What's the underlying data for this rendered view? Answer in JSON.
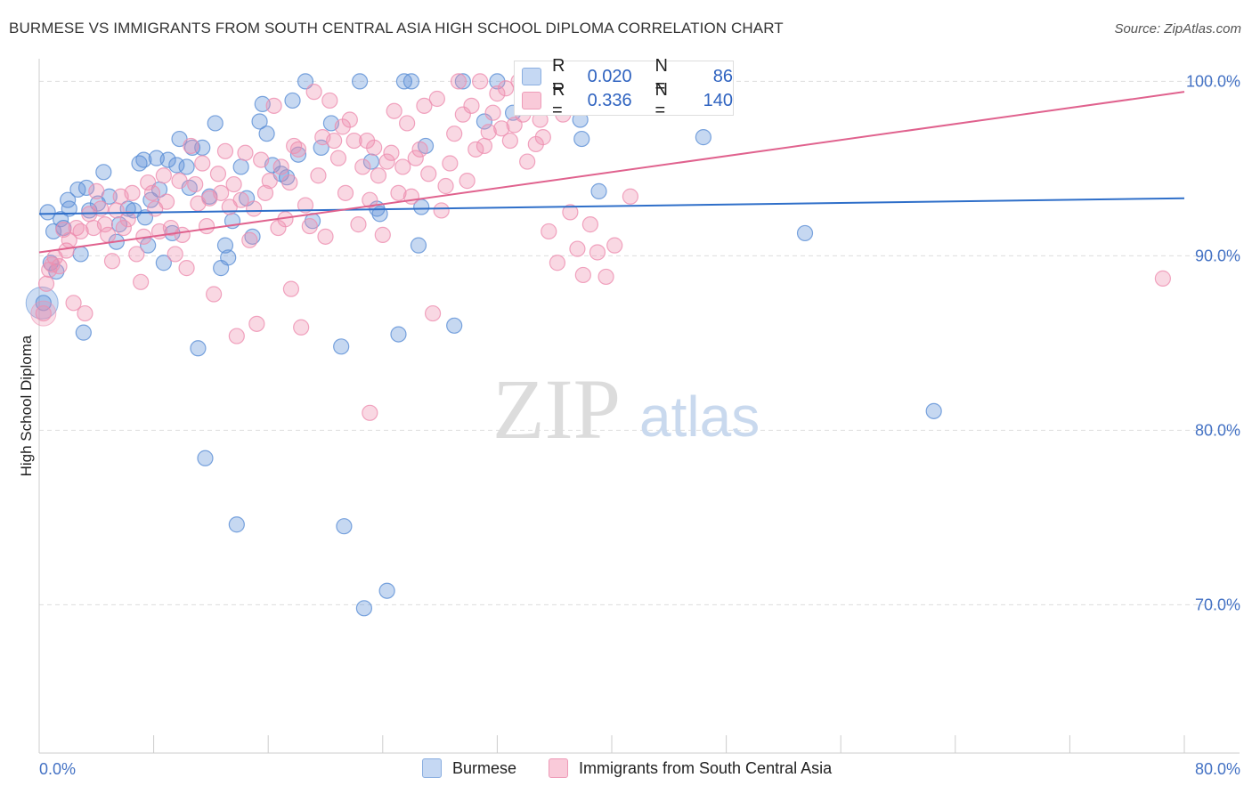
{
  "header": {
    "title": "BURMESE VS IMMIGRANTS FROM SOUTH CENTRAL ASIA HIGH SCHOOL DIPLOMA CORRELATION CHART",
    "source": "Source: ZipAtlas.com"
  },
  "watermark": {
    "zip": "ZIP",
    "atlas": "atlas"
  },
  "legend": {
    "rows": [
      {
        "r_label": "R =",
        "r_value": "0.020",
        "n_label": "N =",
        "n_value": "86",
        "color": "#a9c5ee"
      },
      {
        "r_label": "R =",
        "r_value": "0.336",
        "n_label": "N =",
        "n_value": "140",
        "color": "#f6b6cc"
      }
    ]
  },
  "bottom_legend": [
    {
      "label": "Burmese",
      "color": "#a9c5ee"
    },
    {
      "label": "Immigrants from South Central Asia",
      "color": "#f6b6cc"
    }
  ],
  "chart_data": {
    "type": "scatter",
    "title": "BURMESE VS IMMIGRANTS FROM SOUTH CENTRAL ASIA HIGH SCHOOL DIPLOMA CORRELATION CHART",
    "xlabel": "",
    "ylabel": "High School Diploma",
    "xlim": [
      0,
      80
    ],
    "ylim": [
      61.5,
      101.5
    ],
    "x_tick_labels": [
      "0.0%",
      "80.0%"
    ],
    "y_ticks": [
      70,
      80,
      90,
      100
    ],
    "y_tick_labels": [
      "70.0%",
      "80.0%",
      "90.0%",
      "100.0%"
    ],
    "grid": "horizontal dashed",
    "legend_position": "top-center",
    "colors": {
      "burmese": "#5b8fd6",
      "burmese_line": "#2f6fc9",
      "sca": "#ee8fb0",
      "sca_line": "#e0628e"
    },
    "series": [
      {
        "name": "Burmese",
        "trend": {
          "x": [
            0,
            80
          ],
          "y": [
            92.4,
            93.3
          ]
        },
        "points": [
          [
            0.3,
            87.3
          ],
          [
            0.8,
            89.6
          ],
          [
            1.0,
            91.4
          ],
          [
            1.2,
            89.1
          ],
          [
            1.5,
            92.1
          ],
          [
            1.7,
            91.6
          ],
          [
            2.0,
            93.2
          ],
          [
            2.1,
            92.7
          ],
          [
            2.7,
            93.8
          ],
          [
            2.9,
            90.1
          ],
          [
            3.1,
            85.6
          ],
          [
            3.3,
            93.9
          ],
          [
            3.5,
            92.6
          ],
          [
            4.1,
            93.0
          ],
          [
            4.5,
            94.8
          ],
          [
            4.9,
            93.4
          ],
          [
            5.4,
            90.8
          ],
          [
            5.6,
            91.8
          ],
          [
            6.2,
            92.7
          ],
          [
            6.6,
            92.6
          ],
          [
            7.0,
            95.3
          ],
          [
            7.3,
            95.5
          ],
          [
            7.4,
            92.2
          ],
          [
            7.6,
            90.6
          ],
          [
            7.8,
            93.2
          ],
          [
            8.2,
            95.6
          ],
          [
            8.4,
            93.8
          ],
          [
            8.7,
            89.6
          ],
          [
            9.0,
            95.5
          ],
          [
            9.3,
            91.3
          ],
          [
            9.6,
            95.2
          ],
          [
            9.8,
            96.7
          ],
          [
            10.3,
            95.1
          ],
          [
            10.5,
            93.9
          ],
          [
            10.7,
            96.2
          ],
          [
            11.1,
            84.7
          ],
          [
            11.4,
            96.2
          ],
          [
            11.6,
            78.4
          ],
          [
            11.9,
            93.4
          ],
          [
            12.3,
            97.6
          ],
          [
            12.7,
            89.3
          ],
          [
            13.0,
            90.6
          ],
          [
            13.2,
            89.9
          ],
          [
            13.5,
            92.0
          ],
          [
            13.8,
            74.6
          ],
          [
            14.1,
            95.1
          ],
          [
            14.5,
            93.3
          ],
          [
            14.9,
            91.1
          ],
          [
            15.4,
            97.7
          ],
          [
            15.6,
            98.7
          ],
          [
            15.9,
            97.0
          ],
          [
            16.3,
            95.2
          ],
          [
            16.9,
            94.7
          ],
          [
            17.3,
            94.5
          ],
          [
            17.7,
            98.9
          ],
          [
            18.1,
            95.8
          ],
          [
            18.6,
            100.0
          ],
          [
            19.1,
            92.0
          ],
          [
            19.7,
            96.2
          ],
          [
            20.4,
            97.6
          ],
          [
            21.1,
            84.8
          ],
          [
            21.3,
            74.5
          ],
          [
            22.4,
            100.0
          ],
          [
            22.7,
            69.8
          ],
          [
            23.2,
            95.4
          ],
          [
            23.6,
            92.7
          ],
          [
            23.8,
            92.4
          ],
          [
            24.3,
            70.8
          ],
          [
            25.1,
            85.5
          ],
          [
            25.5,
            100.0
          ],
          [
            26.0,
            100.0
          ],
          [
            26.5,
            90.6
          ],
          [
            26.7,
            92.8
          ],
          [
            27.0,
            96.3
          ],
          [
            29.0,
            86.0
          ],
          [
            29.6,
            100.0
          ],
          [
            31.1,
            97.7
          ],
          [
            32.0,
            100.0
          ],
          [
            33.1,
            98.2
          ],
          [
            37.8,
            97.8
          ],
          [
            37.9,
            96.7
          ],
          [
            39.1,
            93.7
          ],
          [
            46.4,
            96.8
          ],
          [
            53.5,
            91.3
          ],
          [
            62.5,
            81.1
          ],
          [
            0.6,
            92.5
          ]
        ]
      },
      {
        "name": "Immigrants from South Central Asia",
        "trend": {
          "x": [
            0,
            80
          ],
          "y": [
            90.2,
            99.4
          ]
        },
        "points": [
          [
            0.3,
            86.7
          ],
          [
            0.5,
            88.4
          ],
          [
            0.7,
            89.2
          ],
          [
            0.9,
            89.5
          ],
          [
            1.1,
            89.9
          ],
          [
            1.4,
            89.4
          ],
          [
            1.7,
            91.5
          ],
          [
            1.9,
            90.3
          ],
          [
            2.1,
            90.9
          ],
          [
            2.4,
            87.3
          ],
          [
            2.6,
            91.6
          ],
          [
            2.9,
            91.4
          ],
          [
            3.2,
            86.7
          ],
          [
            3.5,
            92.4
          ],
          [
            3.8,
            91.6
          ],
          [
            4.0,
            93.7
          ],
          [
            4.3,
            92.7
          ],
          [
            4.6,
            91.8
          ],
          [
            4.8,
            91.2
          ],
          [
            5.1,
            89.7
          ],
          [
            5.4,
            92.6
          ],
          [
            5.7,
            93.4
          ],
          [
            5.9,
            91.6
          ],
          [
            6.2,
            92.1
          ],
          [
            6.5,
            93.6
          ],
          [
            6.8,
            90.1
          ],
          [
            7.1,
            88.5
          ],
          [
            7.3,
            91.1
          ],
          [
            7.6,
            94.2
          ],
          [
            7.9,
            93.6
          ],
          [
            8.1,
            92.7
          ],
          [
            8.4,
            91.4
          ],
          [
            8.7,
            94.6
          ],
          [
            8.9,
            93.1
          ],
          [
            9.2,
            91.6
          ],
          [
            9.5,
            90.1
          ],
          [
            9.8,
            94.3
          ],
          [
            10.0,
            91.2
          ],
          [
            10.3,
            89.3
          ],
          [
            10.6,
            96.3
          ],
          [
            10.9,
            94.1
          ],
          [
            11.1,
            93.0
          ],
          [
            11.4,
            95.3
          ],
          [
            11.7,
            91.7
          ],
          [
            11.9,
            93.3
          ],
          [
            12.2,
            87.8
          ],
          [
            12.5,
            94.7
          ],
          [
            12.7,
            93.6
          ],
          [
            13.0,
            96.0
          ],
          [
            13.3,
            92.8
          ],
          [
            13.6,
            94.1
          ],
          [
            13.8,
            85.4
          ],
          [
            14.1,
            93.2
          ],
          [
            14.4,
            95.9
          ],
          [
            14.7,
            90.9
          ],
          [
            15.0,
            92.7
          ],
          [
            15.2,
            86.1
          ],
          [
            15.5,
            95.5
          ],
          [
            15.8,
            93.6
          ],
          [
            16.1,
            94.3
          ],
          [
            16.4,
            98.6
          ],
          [
            16.7,
            91.6
          ],
          [
            16.9,
            95.1
          ],
          [
            17.2,
            92.1
          ],
          [
            17.5,
            94.2
          ],
          [
            17.8,
            96.3
          ],
          [
            18.1,
            96.1
          ],
          [
            18.3,
            85.9
          ],
          [
            18.6,
            92.9
          ],
          [
            18.9,
            91.7
          ],
          [
            19.2,
            99.4
          ],
          [
            19.5,
            94.6
          ],
          [
            19.8,
            96.8
          ],
          [
            20.0,
            91.1
          ],
          [
            20.3,
            98.9
          ],
          [
            20.6,
            96.6
          ],
          [
            20.9,
            95.6
          ],
          [
            21.2,
            97.4
          ],
          [
            21.4,
            93.6
          ],
          [
            21.7,
            97.8
          ],
          [
            22.0,
            96.6
          ],
          [
            22.3,
            91.8
          ],
          [
            22.6,
            95.1
          ],
          [
            22.9,
            96.6
          ],
          [
            23.1,
            93.2
          ],
          [
            23.4,
            96.2
          ],
          [
            23.7,
            94.6
          ],
          [
            24.0,
            91.2
          ],
          [
            24.3,
            95.4
          ],
          [
            24.6,
            95.9
          ],
          [
            24.8,
            98.3
          ],
          [
            25.1,
            93.6
          ],
          [
            25.4,
            95.1
          ],
          [
            25.7,
            97.6
          ],
          [
            26.0,
            93.4
          ],
          [
            26.3,
            95.6
          ],
          [
            26.6,
            96.1
          ],
          [
            26.9,
            98.6
          ],
          [
            27.2,
            94.7
          ],
          [
            27.5,
            86.7
          ],
          [
            27.8,
            99.0
          ],
          [
            28.1,
            92.6
          ],
          [
            28.4,
            94.0
          ],
          [
            28.7,
            95.3
          ],
          [
            29.0,
            97.0
          ],
          [
            29.3,
            100.0
          ],
          [
            29.6,
            98.1
          ],
          [
            29.9,
            94.3
          ],
          [
            30.2,
            98.6
          ],
          [
            30.5,
            96.1
          ],
          [
            30.8,
            100.0
          ],
          [
            31.1,
            96.3
          ],
          [
            31.4,
            97.1
          ],
          [
            31.7,
            98.2
          ],
          [
            32.0,
            99.3
          ],
          [
            32.3,
            97.3
          ],
          [
            32.6,
            99.6
          ],
          [
            32.9,
            96.6
          ],
          [
            33.2,
            97.5
          ],
          [
            33.5,
            100.0
          ],
          [
            33.8,
            98.1
          ],
          [
            34.1,
            95.4
          ],
          [
            34.4,
            99.2
          ],
          [
            34.7,
            96.4
          ],
          [
            35.0,
            97.8
          ],
          [
            35.2,
            96.8
          ],
          [
            35.6,
            91.4
          ],
          [
            36.2,
            89.6
          ],
          [
            36.6,
            98.1
          ],
          [
            37.1,
            92.5
          ],
          [
            37.6,
            90.4
          ],
          [
            38.0,
            88.9
          ],
          [
            38.5,
            91.8
          ],
          [
            39.0,
            90.2
          ],
          [
            39.6,
            88.8
          ],
          [
            40.2,
            90.6
          ],
          [
            41.3,
            93.4
          ],
          [
            17.6,
            88.1
          ],
          [
            23.1,
            81.0
          ],
          [
            78.5,
            88.7
          ]
        ]
      }
    ]
  }
}
